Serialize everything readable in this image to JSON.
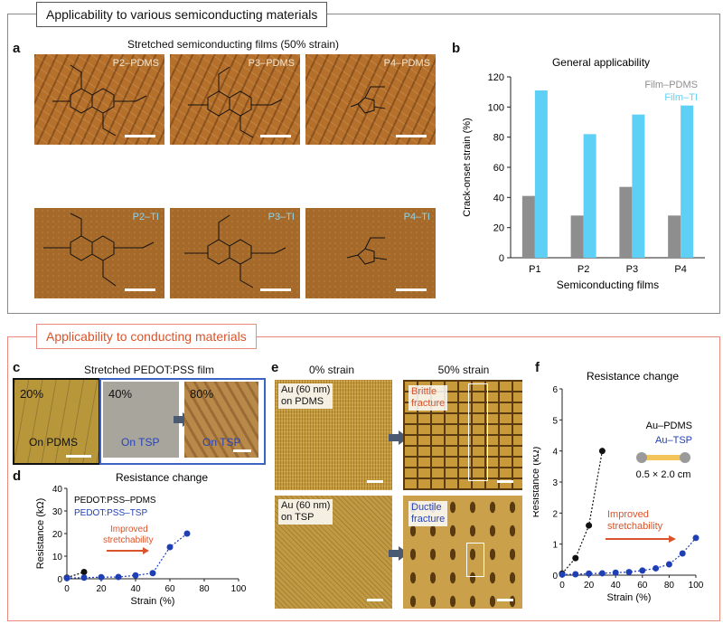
{
  "headers": {
    "top": "Applicability to various semiconducting materials",
    "bottom": "Applicability to conducting materials"
  },
  "panel_a": {
    "letter": "a",
    "caption": "Stretched semiconducting films (50% strain)",
    "tiles": [
      "P2–PDMS",
      "P3–PDMS",
      "P4–PDMS",
      "P2–TI",
      "P3–TI",
      "P4–TI"
    ]
  },
  "panel_b": {
    "letter": "b",
    "title": "General applicability"
  },
  "panel_c": {
    "letter": "c",
    "caption": "Stretched PEDOT:PSS film",
    "p1": "20%",
    "p1_sub": "On PDMS",
    "p2": "40%",
    "p2_sub": "On TSP",
    "p3": "80%",
    "p3_sub": "On TSP"
  },
  "panel_d": {
    "letter": "d",
    "title": "Resistance change"
  },
  "panel_e": {
    "letter": "e",
    "col1": "0% strain",
    "col2": "50% strain",
    "a1": "Au (60 nm)\non PDMS",
    "a2": "Au (60 nm)\non TSP",
    "b1": "Brittle\nfracture",
    "b2": "Ductile\nfracture"
  },
  "panel_f": {
    "letter": "f",
    "title": "Resistance change",
    "device": "0.5 × 2.0 cm"
  },
  "colors": {
    "pdms": "#8e8e8e",
    "ti": "#5fd0f5",
    "tsp": "#1f3fb5",
    "arrow": "#d9542b",
    "border_bottom": "#e9897f"
  },
  "chart_data": [
    {
      "type": "bar",
      "title": "General applicability",
      "xlabel": "Semiconducting films",
      "ylabel": "Crack-onset strain (%)",
      "ylim": [
        0,
        120
      ],
      "yticks": [
        0,
        20,
        40,
        60,
        80,
        100,
        120
      ],
      "categories": [
        "P1",
        "P2",
        "P3",
        "P4"
      ],
      "series": [
        {
          "name": "Film–PDMS",
          "values": [
            41,
            28,
            47,
            28
          ]
        },
        {
          "name": "Film–TI",
          "values": [
            111,
            82,
            95,
            101
          ]
        }
      ],
      "legend": "top-right"
    },
    {
      "type": "scatter",
      "title": "Resistance change",
      "xlabel": "Strain (%)",
      "ylabel": "Resistance (kΩ)",
      "xlim": [
        0,
        100
      ],
      "ylim": [
        0,
        40
      ],
      "xticks": [
        0,
        20,
        40,
        60,
        80,
        100
      ],
      "yticks": [
        0,
        10,
        20,
        30,
        40
      ],
      "series": [
        {
          "name": "PEDOT:PSS–PDMS",
          "x": [
            0,
            10
          ],
          "y": [
            0.5,
            3
          ]
        },
        {
          "name": "PEDOT:PSS–TSP",
          "x": [
            0,
            10,
            20,
            30,
            40,
            50,
            60,
            70
          ],
          "y": [
            0.3,
            0.5,
            0.7,
            0.8,
            1.5,
            2.5,
            14,
            20
          ]
        }
      ],
      "annotation": "Improved\nstretchability"
    },
    {
      "type": "scatter",
      "title": "Resistance change",
      "xlabel": "Strain (%)",
      "ylabel": "Resistance (kΩ)",
      "xlim": [
        0,
        100
      ],
      "ylim": [
        0,
        6
      ],
      "xticks": [
        0,
        20,
        40,
        60,
        80,
        100
      ],
      "yticks": [
        0,
        1,
        2,
        3,
        4,
        5,
        6
      ],
      "series": [
        {
          "name": "Au–PDMS",
          "x": [
            0,
            10,
            20,
            30
          ],
          "y": [
            0.05,
            0.55,
            1.6,
            4.0
          ]
        },
        {
          "name": "Au–TSP",
          "x": [
            0,
            10,
            20,
            30,
            40,
            50,
            60,
            70,
            80,
            90,
            100
          ],
          "y": [
            0.02,
            0.03,
            0.05,
            0.06,
            0.08,
            0.1,
            0.15,
            0.22,
            0.35,
            0.7,
            1.2
          ]
        }
      ],
      "annotation": "Improved\nstretchability"
    }
  ]
}
